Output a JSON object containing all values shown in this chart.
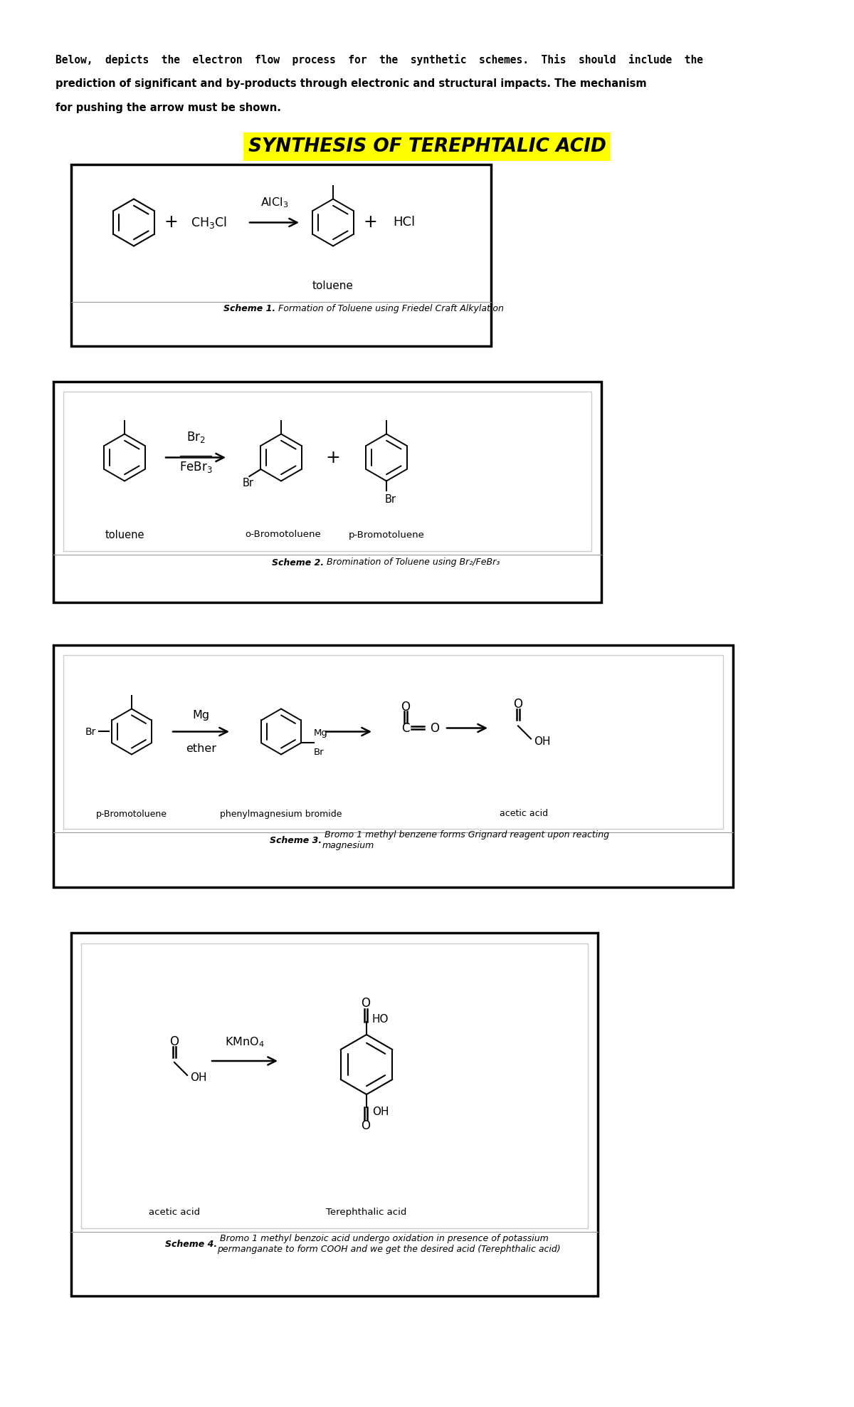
{
  "title": "SYNTHESIS OF TEREPHTALIC ACID",
  "scheme1_caption_bold": "Scheme 1.",
  "scheme1_caption_rest": " Formation of Toluene using Friedel Craft Alkylation",
  "scheme2_caption_bold": "Scheme 2.",
  "scheme2_caption_rest": " Bromination of Toluene using Br₂/FeBr₃",
  "scheme3_caption_bold": "Scheme 3.",
  "scheme3_caption_rest": " Bromo 1 methyl benzene forms Grignard reagent upon reacting\nmagnesium",
  "scheme4_caption_bold": "Scheme 4.",
  "scheme4_caption_rest": " Bromo 1 methyl benzoic acid undergo oxidation in presence of potassium\npermanganate to form COOH and we get the desired acid (Terephthalic acid)",
  "bg_color": "#ffffff",
  "title_bg": "#ffff00",
  "intro_line1": "Below,  depicts  the  electron  flow  process  for  the  synthetic  schemes.  This  should  include  the",
  "intro_line2": "prediction of significant and by-products through electronic and structural impacts. The mechanism",
  "intro_line3": "for pushing the arrow must be shown."
}
